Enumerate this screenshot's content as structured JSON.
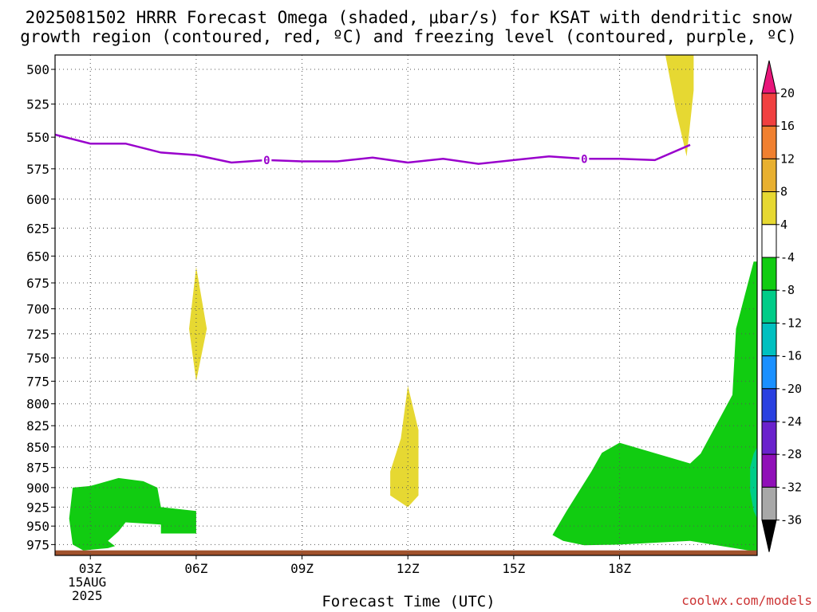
{
  "title_line1": "2025081502 HRRR Forecast Omega (shaded, μbar/s) for KSAT with dendritic snow",
  "title_line2": "growth region (contoured, red, ºC) and freezing level (contoured, purple, ºC)",
  "credit": "coolwx.com/models",
  "chart_data": {
    "type": "contour",
    "title": "2025081502 HRRR Forecast Omega (shaded, μbar/s) for KSAT with dendritic snow growth region (contoured, red, ºC) and freezing level (contoured, purple, ºC)",
    "xlabel": "Forecast Time (UTC)",
    "ylabel": "",
    "x_axis": {
      "range_hours": [
        2,
        21.9
      ],
      "ticks": [
        {
          "hour": 3,
          "label": "03Z",
          "sub1": "15AUG",
          "sub2": "2025"
        },
        {
          "hour": 6,
          "label": "06Z"
        },
        {
          "hour": 9,
          "label": "09Z"
        },
        {
          "hour": 12,
          "label": "12Z"
        },
        {
          "hour": 15,
          "label": "15Z"
        },
        {
          "hour": 18,
          "label": "18Z"
        }
      ]
    },
    "y_axis": {
      "scale": "log-pressure",
      "range_hPa": [
        490,
        990
      ],
      "ticks": [
        500,
        525,
        550,
        575,
        600,
        625,
        650,
        675,
        700,
        725,
        750,
        775,
        800,
        825,
        850,
        875,
        900,
        925,
        950,
        975
      ]
    },
    "grid": true,
    "freezing_level": {
      "color": "#9900cc",
      "contour_label": "0",
      "label_hours": [
        8,
        17
      ],
      "points": [
        [
          2,
          548
        ],
        [
          3,
          555
        ],
        [
          4,
          555
        ],
        [
          5,
          562
        ],
        [
          6,
          564
        ],
        [
          7,
          570
        ],
        [
          8,
          568
        ],
        [
          9,
          569
        ],
        [
          10,
          569
        ],
        [
          11,
          566
        ],
        [
          12,
          570
        ],
        [
          13,
          567
        ],
        [
          14,
          571
        ],
        [
          15,
          568
        ],
        [
          16,
          565
        ],
        [
          17,
          567
        ],
        [
          18,
          567
        ],
        [
          19,
          568
        ],
        [
          20,
          556
        ]
      ]
    },
    "ground_band": {
      "color": "#a0522d",
      "from_hPa": 983,
      "to_hPa": 990
    },
    "omega_regions": [
      {
        "level": "4 to 8",
        "color": "#e6d832",
        "points": [
          [
            6,
            660
          ],
          [
            6.3,
            720
          ],
          [
            6,
            775
          ],
          [
            5.8,
            720
          ]
        ]
      },
      {
        "level": "4 to 8",
        "color": "#e6d832",
        "points": [
          [
            12,
            780
          ],
          [
            12.3,
            830
          ],
          [
            12.3,
            910
          ],
          [
            12,
            925
          ],
          [
            11.5,
            910
          ],
          [
            11.5,
            880
          ],
          [
            11.8,
            840
          ]
        ]
      },
      {
        "level": "4 to 8",
        "color": "#e6d832",
        "points": [
          [
            19.9,
            490
          ],
          [
            20.1,
            490
          ],
          [
            20.1,
            515
          ],
          [
            19.9,
            565
          ],
          [
            19.6,
            530
          ],
          [
            19.3,
            490
          ]
        ]
      },
      {
        "level": "-8 to -4",
        "color": "#11cc11",
        "points": [
          [
            2.5,
            900
          ],
          [
            3,
            898
          ],
          [
            3.8,
            888
          ],
          [
            4.5,
            892
          ],
          [
            4.9,
            900
          ],
          [
            5,
            925
          ],
          [
            6,
            930
          ],
          [
            6,
            960
          ],
          [
            5,
            960
          ],
          [
            5,
            948
          ],
          [
            4,
            945
          ],
          [
            3.8,
            957
          ],
          [
            3.5,
            970
          ],
          [
            3.7,
            977
          ],
          [
            3.5,
            980
          ],
          [
            2.8,
            983
          ],
          [
            2.5,
            975
          ],
          [
            2.4,
            940
          ]
        ]
      },
      {
        "level": "-8 to -4",
        "color": "#11cc11",
        "points": [
          [
            18,
            845
          ],
          [
            20,
            870
          ],
          [
            20.3,
            858
          ],
          [
            21.2,
            790
          ],
          [
            21.3,
            720
          ],
          [
            21.8,
            655
          ],
          [
            21.9,
            655
          ],
          [
            21.9,
            985
          ],
          [
            20,
            970
          ],
          [
            18,
            975
          ],
          [
            17,
            976
          ],
          [
            16.4,
            970
          ],
          [
            16.1,
            962
          ],
          [
            16.5,
            930
          ],
          [
            17.2,
            880
          ],
          [
            17.5,
            857
          ]
        ]
      },
      {
        "level": "-12 to -8",
        "color": "#00cc88",
        "points": [
          [
            21.9,
            850
          ],
          [
            21.8,
            858
          ],
          [
            21.7,
            875
          ],
          [
            21.7,
            905
          ],
          [
            21.8,
            930
          ],
          [
            21.9,
            940
          ]
        ]
      }
    ],
    "colorbar": {
      "labels": [
        "20",
        "16",
        "12",
        "8",
        "4",
        "-4",
        "-8",
        "-12",
        "-16",
        "-20",
        "-24",
        "-28",
        "-32",
        "-36"
      ],
      "bins": [
        {
          "range": "above 20",
          "color": "#e8167a"
        },
        {
          "range": "16 to 20",
          "color": "#f04040"
        },
        {
          "range": "12 to 16",
          "color": "#f08030"
        },
        {
          "range": "8 to 12",
          "color": "#e8b030"
        },
        {
          "range": "4 to 8",
          "color": "#e6d832"
        },
        {
          "range": "-4 to 4",
          "color": "#ffffff"
        },
        {
          "range": "-8 to -4",
          "color": "#11cc11"
        },
        {
          "range": "-12 to -8",
          "color": "#00cc88"
        },
        {
          "range": "-16 to -12",
          "color": "#00c0c0"
        },
        {
          "range": "-20 to -16",
          "color": "#1a90ff"
        },
        {
          "range": "-24 to -20",
          "color": "#2a40e0"
        },
        {
          "range": "-28 to -24",
          "color": "#6a22cc"
        },
        {
          "range": "-32 to -28",
          "color": "#9010b8"
        },
        {
          "range": "-36 to -32",
          "color": "#a8a8a8"
        },
        {
          "range": "below -36",
          "color": "#000000"
        }
      ]
    }
  }
}
